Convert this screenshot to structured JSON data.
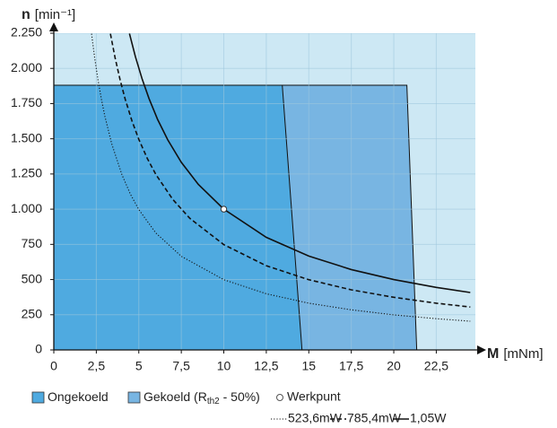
{
  "chart_data": {
    "type": "line",
    "ylabel": [
      "n",
      "[min⁻¹]"
    ],
    "xlabel": [
      "M",
      "[mNm]"
    ],
    "xlim": [
      0,
      24.8
    ],
    "ylim": [
      0,
      2250
    ],
    "xticks": [
      0,
      {
        "value": 2.5,
        "label": "2,5"
      },
      5,
      {
        "value": 7.5,
        "label": "7,5"
      },
      10,
      {
        "value": 12.5,
        "label": "12,5"
      },
      15,
      {
        "value": 17.5,
        "label": "17,5"
      },
      20,
      {
        "value": 22.5,
        "label": "22,5"
      }
    ],
    "yticks": [
      0,
      250,
      500,
      750,
      {
        "value": 1000,
        "label": "1.000"
      },
      {
        "value": 1250,
        "label": "1.250"
      },
      {
        "value": 1500,
        "label": "1.500"
      },
      {
        "value": 1750,
        "label": "1.750"
      },
      {
        "value": 2000,
        "label": "2.000"
      },
      {
        "value": 2250,
        "label": "2.250"
      }
    ],
    "grid": true,
    "background": "#cde8f4",
    "regions": [
      {
        "name": [
          "Gekoeld (R",
          "th2",
          " - 50%)"
        ],
        "color": "#78b5e2",
        "x": [
          0,
          0,
          20.77,
          21.35
        ],
        "values": [
          0,
          1880,
          1880,
          0
        ]
      },
      {
        "name": [
          "Ongekoeld"
        ],
        "color": "#4faae0",
        "x": [
          0,
          0,
          13.44,
          14.6
        ],
        "values": [
          0,
          1880,
          1880,
          0
        ]
      }
    ],
    "series": [
      {
        "name": "523,6mW",
        "color": "#111111",
        "style": "dotted",
        "x": [
          2.22,
          2.4,
          2.6,
          2.8,
          3,
          3.4,
          4,
          4.5,
          5,
          6,
          7.5,
          10,
          12.5,
          15,
          17.5,
          20,
          22.5,
          24.5
        ],
        "values": [
          2246,
          2078,
          1918,
          1781,
          1662,
          1467,
          1247,
          1108,
          997,
          831,
          665,
          499,
          399,
          332,
          285,
          249,
          222,
          204
        ]
      },
      {
        "name": "785,4mW",
        "color": "#111111",
        "style": "dashed",
        "x": [
          3.33,
          3.6,
          3.9,
          4.2,
          4.6,
          5,
          5.5,
          6,
          7,
          8,
          10,
          12.5,
          15,
          17.5,
          20,
          22.5,
          24.5
        ],
        "values": [
          2246,
          2078,
          1918,
          1781,
          1626,
          1496,
          1360,
          1247,
          1069,
          935,
          748,
          598,
          499,
          427,
          374,
          332,
          305
        ]
      },
      {
        "name": "1,05W",
        "color": "#111111",
        "style": "solid",
        "x": [
          4.45,
          4.8,
          5.2,
          5.6,
          6.1,
          6.7,
          7.5,
          8.5,
          10,
          12.5,
          15,
          17.5,
          20,
          22.5,
          24.5
        ],
        "values": [
          2247,
          2083,
          1923,
          1786,
          1639,
          1493,
          1333,
          1176,
          1000,
          800,
          667,
          571,
          500,
          444,
          408
        ]
      }
    ],
    "points": {
      "name": "Werkpunt",
      "x": [
        10
      ],
      "values": [
        1000
      ]
    }
  }
}
